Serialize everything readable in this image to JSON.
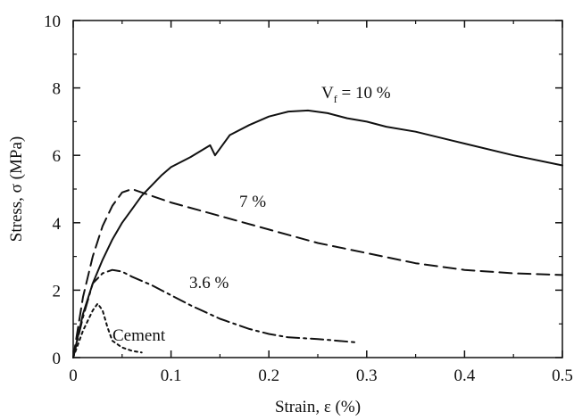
{
  "chart_data": {
    "type": "line",
    "title": "",
    "xlabel": "Strain, ε (%)",
    "ylabel": "Stress, σ (MPa)",
    "xlim": [
      0,
      0.5
    ],
    "ylim": [
      0,
      10
    ],
    "x_ticks": [
      "0",
      "0.1",
      "0.2",
      "0.3",
      "0.4",
      "0.5"
    ],
    "y_ticks": [
      "0",
      "2",
      "4",
      "6",
      "8",
      "10"
    ],
    "grid": false,
    "legend": "none",
    "series": [
      {
        "name": "Vf = 10 %",
        "style": "solid",
        "x": [
          0,
          0.01,
          0.02,
          0.03,
          0.04,
          0.05,
          0.06,
          0.07,
          0.08,
          0.09,
          0.1,
          0.12,
          0.14,
          0.145,
          0.16,
          0.18,
          0.2,
          0.22,
          0.24,
          0.26,
          0.28,
          0.3,
          0.32,
          0.35,
          0.4,
          0.45,
          0.5
        ],
        "y": [
          0,
          1.3,
          2.2,
          2.9,
          3.5,
          4.0,
          4.4,
          4.8,
          5.1,
          5.4,
          5.65,
          5.95,
          6.3,
          6.0,
          6.6,
          6.9,
          7.15,
          7.3,
          7.33,
          7.25,
          7.1,
          7.0,
          6.85,
          6.7,
          6.35,
          6.0,
          5.7
        ]
      },
      {
        "name": "7 %",
        "style": "dashed",
        "x": [
          0,
          0.01,
          0.02,
          0.03,
          0.04,
          0.05,
          0.06,
          0.07,
          0.08,
          0.1,
          0.15,
          0.2,
          0.25,
          0.3,
          0.35,
          0.4,
          0.45,
          0.5
        ],
        "y": [
          0,
          1.8,
          3.0,
          3.9,
          4.5,
          4.9,
          5.0,
          4.9,
          4.8,
          4.6,
          4.2,
          3.8,
          3.4,
          3.1,
          2.8,
          2.6,
          2.5,
          2.45
        ]
      },
      {
        "name": "3.6 %",
        "style": "dash-dot",
        "x": [
          0,
          0.01,
          0.02,
          0.03,
          0.04,
          0.05,
          0.06,
          0.08,
          0.1,
          0.12,
          0.15,
          0.18,
          0.2,
          0.22,
          0.25,
          0.29
        ],
        "y": [
          0,
          1.2,
          2.2,
          2.5,
          2.6,
          2.55,
          2.4,
          2.15,
          1.85,
          1.55,
          1.15,
          0.85,
          0.7,
          0.6,
          0.55,
          0.45
        ]
      },
      {
        "name": "Cement",
        "style": "dotted",
        "x": [
          0,
          0.01,
          0.02,
          0.025,
          0.03,
          0.035,
          0.04,
          0.05,
          0.06,
          0.07
        ],
        "y": [
          0,
          0.8,
          1.4,
          1.6,
          1.4,
          0.9,
          0.5,
          0.3,
          0.2,
          0.15
        ]
      }
    ],
    "annotations": {
      "vf_main": "V",
      "vf_sub": "f",
      "vf_rest": " = 10 %",
      "seven": "7 %",
      "three_six": "3.6 %",
      "cement": "Cement"
    }
  }
}
